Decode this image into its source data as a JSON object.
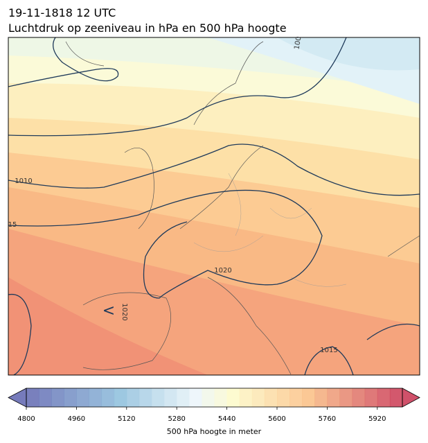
{
  "header": {
    "title": "19-11-1818 12 UTC",
    "subtitle": "Luchtdruk op zeeniveau in hPa en 500 hPa hoogte"
  },
  "map": {
    "contour_labels": [
      "1010",
      "15",
      "1020",
      "1020",
      "100",
      "1015"
    ],
    "low_marker": "<"
  },
  "colorbar": {
    "label": "500 hPa hoogte in meter",
    "range": [
      4800,
      6000
    ],
    "ticks": [
      4800,
      4960,
      5120,
      5280,
      5440,
      5600,
      5760,
      5920
    ]
  }
}
